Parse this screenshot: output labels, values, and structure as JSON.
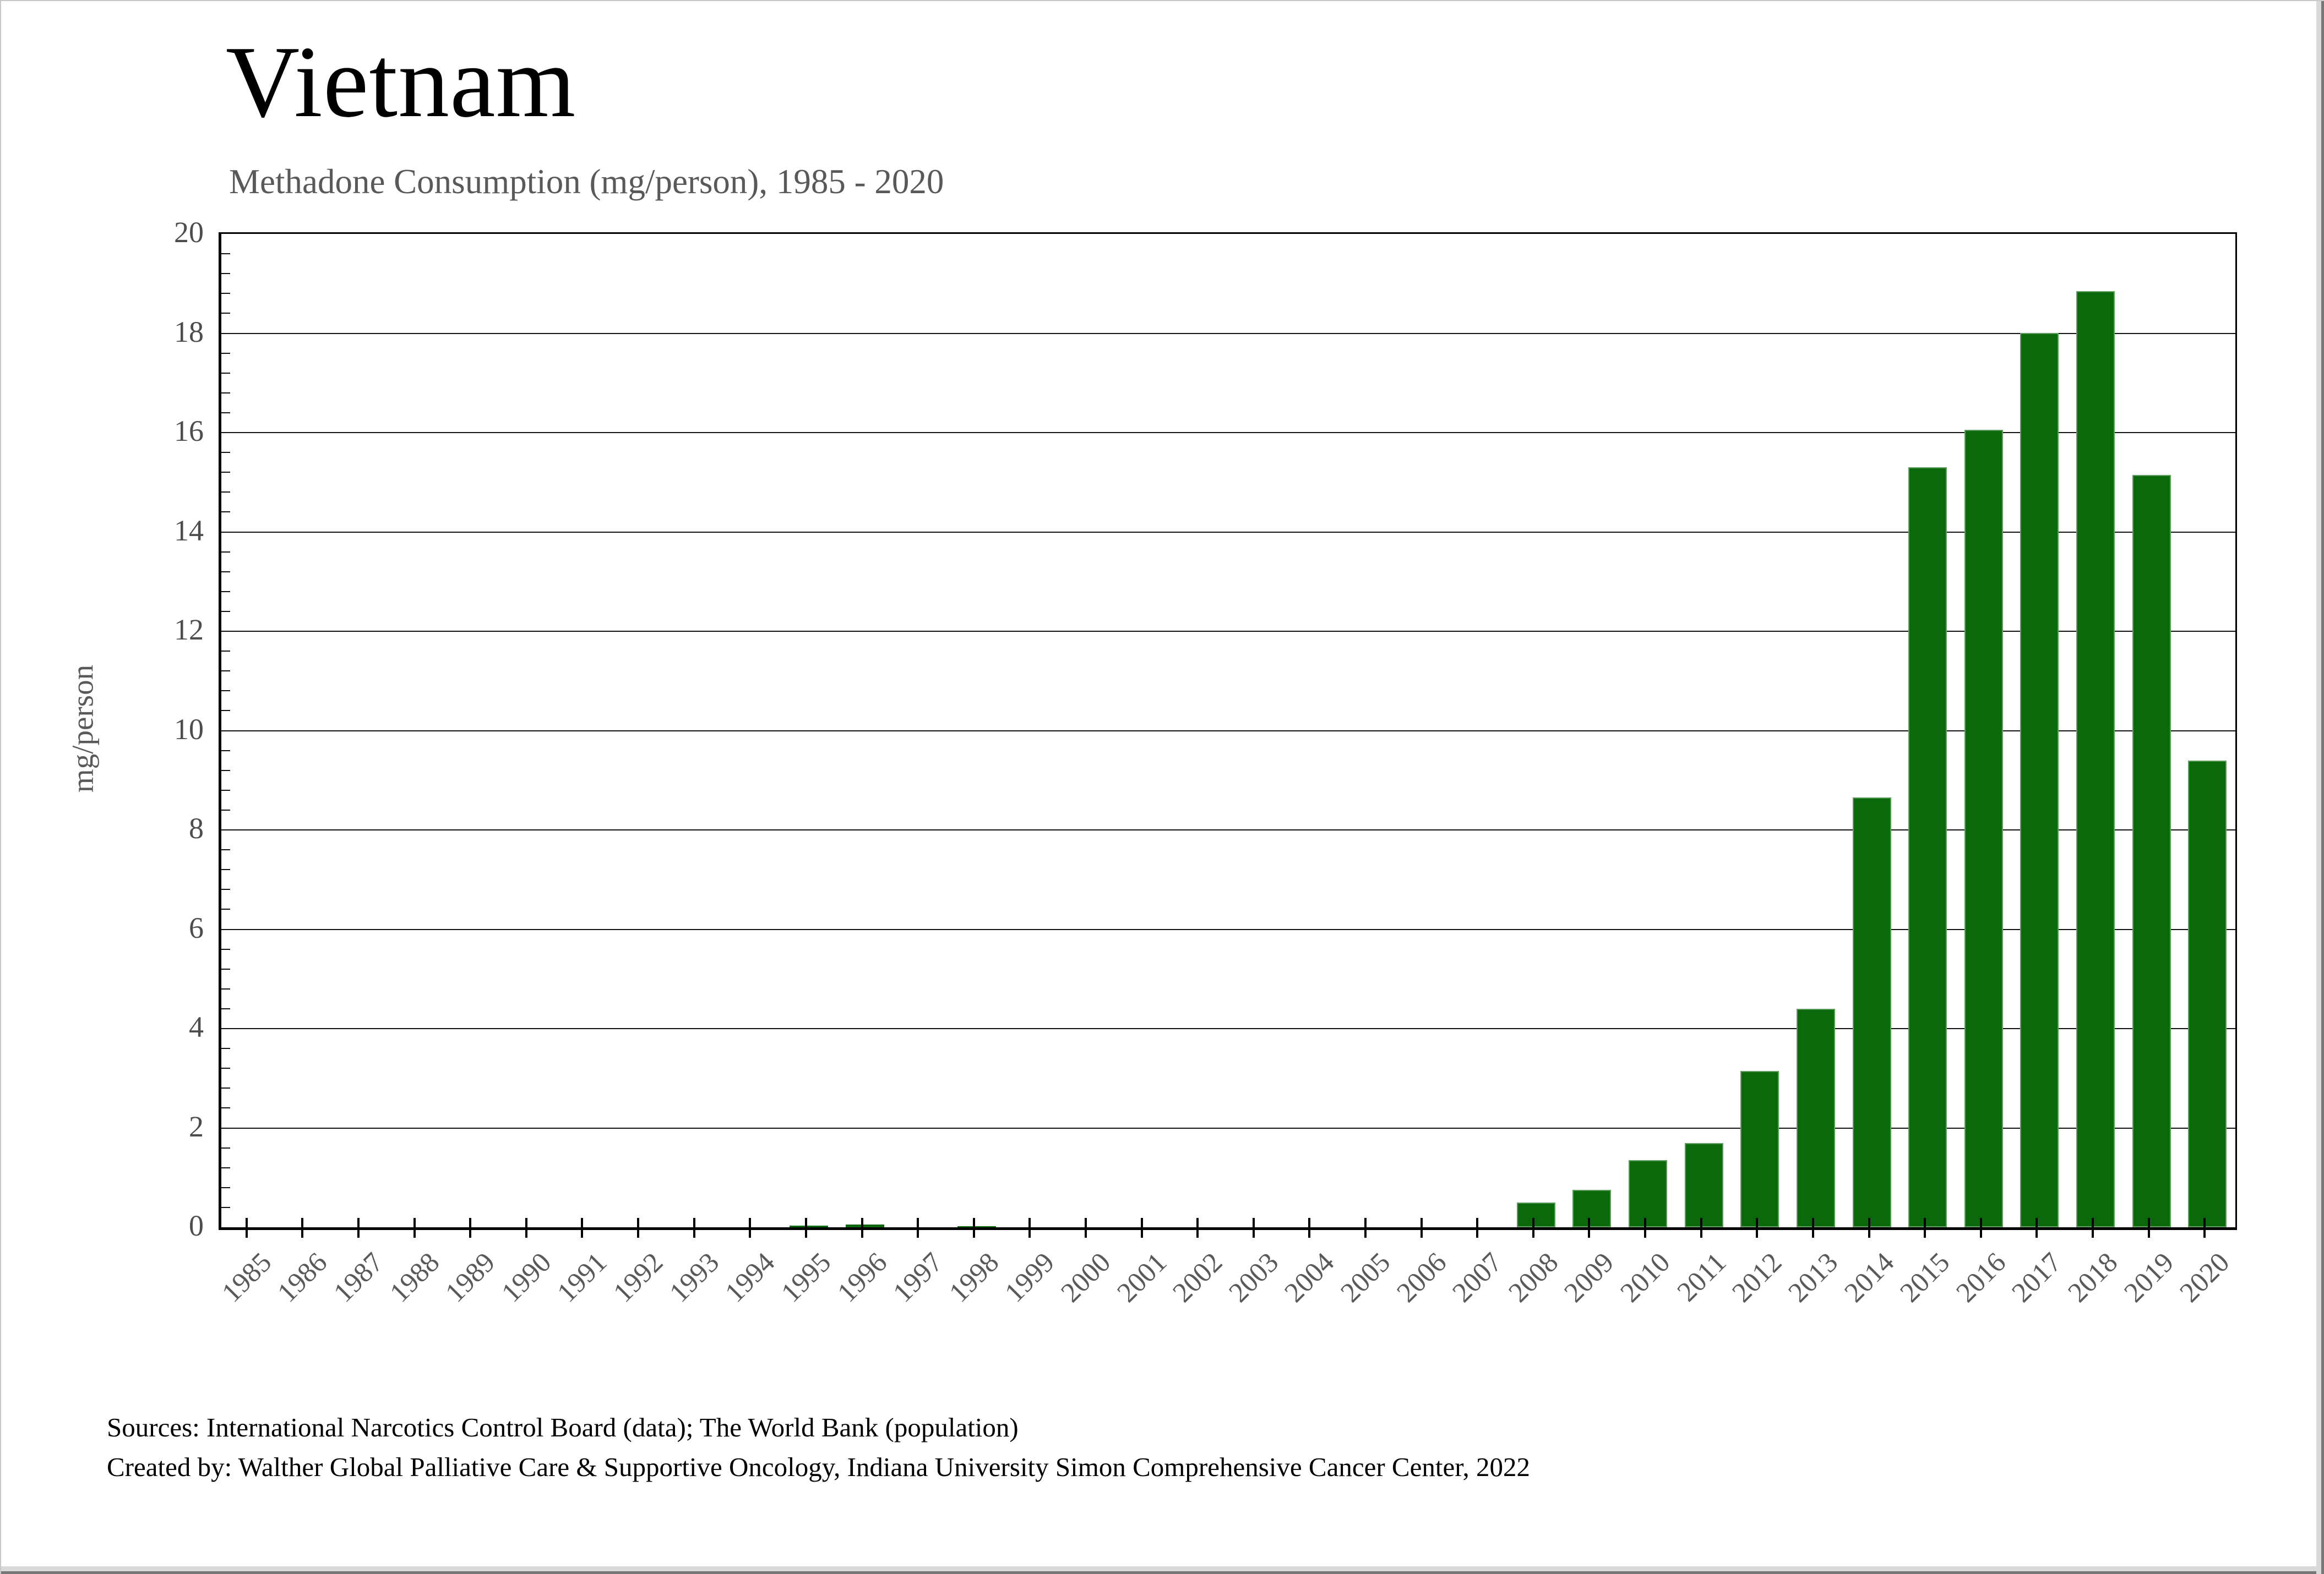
{
  "header": {
    "title": "Vietnam",
    "subtitle": "Methadone Consumption (mg/person), 1985 - 2020"
  },
  "footer": {
    "line1": "Sources: International Narcotics Control Board (data); The World Bank (population)",
    "line2": "Created by: Walther Global Palliative Care & Supportive Oncology, Indiana University Simon Comprehensive Cancer Center, 2022"
  },
  "chart_data": {
    "type": "bar",
    "title": "Vietnam",
    "subtitle": "Methadone Consumption (mg/person), 1985 - 2020",
    "xlabel": "",
    "ylabel": "mg/person",
    "ylim": [
      0,
      20
    ],
    "ytick_step": 2,
    "ytick_labels": [
      "0",
      "2",
      "4",
      "6",
      "8",
      "10",
      "12",
      "14",
      "16",
      "18",
      "20"
    ],
    "y_minor_step": 0.4,
    "grid": "horizontal-major",
    "legend": "none",
    "bar_color": "#0a690a",
    "categories": [
      "1985",
      "1986",
      "1987",
      "1988",
      "1989",
      "1990",
      "1991",
      "1992",
      "1993",
      "1994",
      "1995",
      "1996",
      "1997",
      "1998",
      "1999",
      "2000",
      "2001",
      "2002",
      "2003",
      "2004",
      "2005",
      "2006",
      "2007",
      "2008",
      "2009",
      "2010",
      "2011",
      "2012",
      "2013",
      "2014",
      "2015",
      "2016",
      "2017",
      "2018",
      "2019",
      "2020"
    ],
    "values": [
      0,
      0,
      0,
      0,
      0,
      0,
      0,
      0,
      0,
      0,
      0.03,
      0.05,
      0,
      0.02,
      0,
      0,
      0,
      0,
      0,
      0,
      0,
      0,
      0,
      0.5,
      0.75,
      1.35,
      1.7,
      3.15,
      4.4,
      8.65,
      15.3,
      16.05,
      18,
      18.85,
      15.15,
      9.4
    ]
  }
}
